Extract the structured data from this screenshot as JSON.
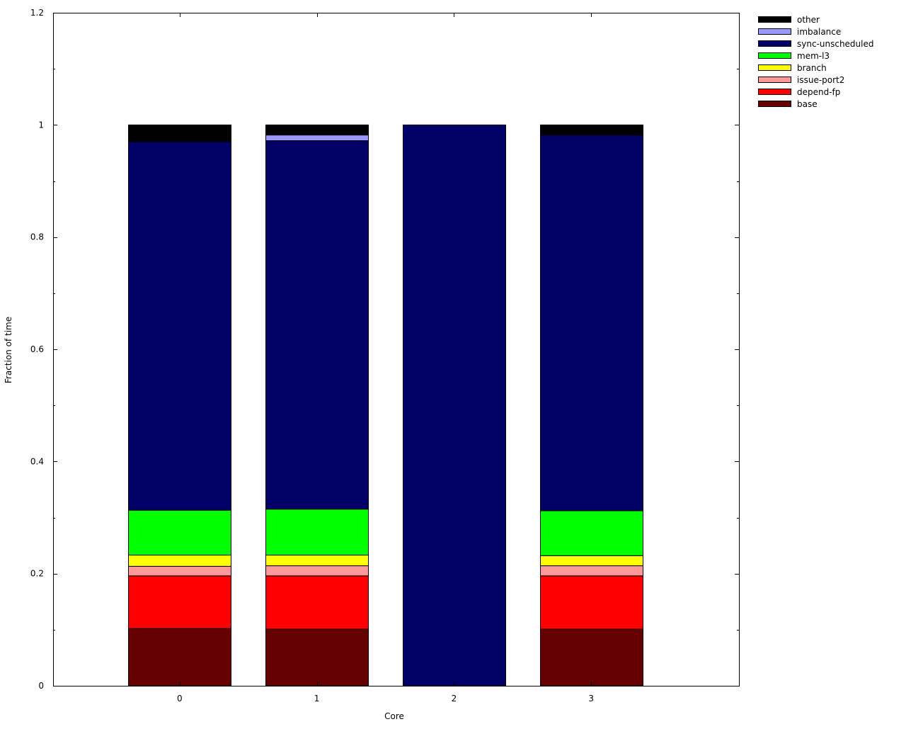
{
  "chart_data": {
    "type": "bar",
    "stacked": true,
    "xlabel": "Core",
    "ylabel": "Fraction of time",
    "categories": [
      "0",
      "1",
      "2",
      "3"
    ],
    "ylim": [
      0,
      1.2
    ],
    "yticks": [
      "0",
      "0.2",
      "0.4",
      "0.6",
      "0.8",
      "1",
      "1.2"
    ],
    "legend_position": "outside right, top",
    "series": [
      {
        "name": "base",
        "color": "#660000",
        "values": [
          0.102,
          0.101,
          0.0,
          0.101
        ]
      },
      {
        "name": "depend-fp",
        "color": "#ff0000",
        "values": [
          0.094,
          0.095,
          0.0,
          0.095
        ]
      },
      {
        "name": "issue-port2",
        "color": "#ff9999",
        "values": [
          0.017,
          0.018,
          0.0,
          0.018
        ]
      },
      {
        "name": "branch",
        "color": "#ffff00",
        "values": [
          0.02,
          0.019,
          0.0,
          0.018
        ]
      },
      {
        "name": "mem-l3",
        "color": "#00ff00",
        "values": [
          0.08,
          0.082,
          0.0,
          0.08
        ]
      },
      {
        "name": "sync-unscheduled",
        "color": "#000066",
        "values": [
          0.657,
          0.657,
          1.0,
          0.67
        ]
      },
      {
        "name": "imbalance",
        "color": "#9999ff",
        "values": [
          0.0,
          0.01,
          0.0,
          0.0
        ]
      },
      {
        "name": "other",
        "color": "#000000",
        "values": [
          0.03,
          0.018,
          0.0,
          0.018
        ]
      }
    ]
  }
}
